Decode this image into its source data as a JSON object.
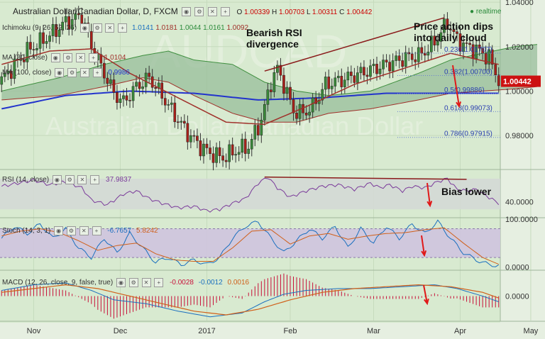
{
  "header": {
    "symbol": "Australian Dollar/Canadian Dollar, D, FXCM",
    "o_label": "O",
    "o_value": "1.00339",
    "h_label": "H",
    "h_value": "1.00703",
    "l_label": "L",
    "l_value": "1.00311",
    "c_label": "C",
    "c_value": "1.00442",
    "realtime": "realtime"
  },
  "indicators": {
    "ichimoku": "Ichimoku (9, 26, 52, 26)",
    "ichimoku_values": [
      "1.0141",
      "1.0181",
      "1.0044",
      "1.0161",
      "1.0092"
    ],
    "ma30": "MA (30, close)",
    "ma30_value": "1.0104",
    "ma100": "MA (100, close)",
    "ma100_value": "0.9986"
  },
  "annotations": {
    "bearish_line1": "Bearish RSI",
    "bearish_line2": "divergence",
    "price_line1": "Price action dips",
    "price_line2": "into daily cloud",
    "bias": "Bias lower"
  },
  "chart_data": [
    {
      "type": "candlestick",
      "title": "Australian Dollar/Canadian Dollar, D, FXCM",
      "x_ticks": [
        "Nov",
        "Dec",
        "2017",
        "Feb",
        "Mar",
        "Apr",
        "May"
      ],
      "y_ticks": [
        "1.04000",
        "1.02000",
        "1.00000",
        "0.98000"
      ],
      "ylim": [
        0.965,
        1.041
      ],
      "last_price": "1.00442",
      "close_path": [
        [
          0,
          1.005
        ],
        [
          8,
          1.018
        ],
        [
          15,
          1.025
        ],
        [
          20,
          1.031
        ],
        [
          25,
          1.034
        ],
        [
          28,
          1.02
        ],
        [
          32,
          1.008
        ],
        [
          35,
          0.999
        ],
        [
          38,
          0.995
        ],
        [
          42,
          1.002
        ],
        [
          46,
          1.006
        ],
        [
          50,
          0.998
        ],
        [
          54,
          0.989
        ],
        [
          58,
          0.981
        ],
        [
          62,
          0.975
        ],
        [
          65,
          0.972
        ],
        [
          69,
          0.97
        ],
        [
          73,
          0.973
        ],
        [
          77,
          0.975
        ],
        [
          81,
          0.987
        ],
        [
          84,
          1.004
        ],
        [
          86,
          1.01
        ],
        [
          88,
          1.003
        ],
        [
          91,
          0.991
        ],
        [
          94,
          0.99
        ],
        [
          97,
          0.993
        ],
        [
          101,
          1.003
        ],
        [
          106,
          1.005
        ],
        [
          110,
          1.007
        ],
        [
          114,
          1.009
        ],
        [
          118,
          1.011
        ],
        [
          122,
          1.013
        ],
        [
          126,
          1.015
        ],
        [
          130,
          1.016
        ],
        [
          133,
          1.019
        ],
        [
          136,
          1.024
        ],
        [
          139,
          1.031
        ],
        [
          142,
          1.023
        ],
        [
          145,
          1.02
        ],
        [
          149,
          1.018
        ],
        [
          152,
          1.015
        ],
        [
          155,
          1.005
        ]
      ],
      "bars_total": 156,
      "ma30": [
        [
          0,
          1.012
        ],
        [
          15,
          1.018
        ],
        [
          28,
          1.019
        ],
        [
          40,
          1.008
        ],
        [
          55,
          0.997
        ],
        [
          70,
          0.986
        ],
        [
          82,
          0.985
        ],
        [
          95,
          0.993
        ],
        [
          110,
          1.003
        ],
        [
          125,
          1.01
        ],
        [
          140,
          1.017
        ],
        [
          155,
          1.012
        ]
      ],
      "ma100": [
        [
          0,
          0.992
        ],
        [
          20,
          0.998
        ],
        [
          40,
          1.0
        ],
        [
          60,
          0.999
        ],
        [
          80,
          0.996
        ],
        [
          100,
          0.997
        ],
        [
          120,
          0.999
        ],
        [
          140,
          0.999
        ],
        [
          155,
          0.999
        ]
      ],
      "cloud_top": [
        [
          0,
          1.0
        ],
        [
          18,
          1.006
        ],
        [
          32,
          1.012
        ],
        [
          44,
          1.016
        ],
        [
          52,
          1.018
        ],
        [
          60,
          1.014
        ],
        [
          72,
          1.012
        ],
        [
          82,
          1.004
        ],
        [
          92,
          1.0
        ],
        [
          102,
          0.998
        ],
        [
          115,
          1.0
        ],
        [
          130,
          1.008
        ],
        [
          140,
          1.014
        ],
        [
          150,
          1.017
        ],
        [
          160,
          1.02
        ],
        [
          167,
          1.021
        ]
      ],
      "cloud_bottom": [
        [
          0,
          0.996
        ],
        [
          18,
          0.998
        ],
        [
          32,
          1.002
        ],
        [
          44,
          1.006
        ],
        [
          52,
          1.004
        ],
        [
          60,
          0.998
        ],
        [
          72,
          0.99
        ],
        [
          82,
          0.986
        ],
        [
          92,
          0.986
        ],
        [
          102,
          0.99
        ],
        [
          115,
          0.992
        ],
        [
          130,
          0.996
        ],
        [
          140,
          0.999
        ],
        [
          150,
          1.0
        ],
        [
          160,
          1.001
        ],
        [
          167,
          1.002
        ]
      ],
      "divergence_price_line": [
        [
          82,
          1.009
        ],
        [
          138,
          1.033
        ]
      ],
      "fibonacci": [
        {
          "label": "0.236(1.01707)",
          "value": 1.01707
        },
        {
          "label": "0.382(1.00700)",
          "value": 1.007
        },
        {
          "label": "0.5(0.99886)",
          "value": 0.99886
        },
        {
          "label": "0.618(0.99073)",
          "value": 0.99073
        },
        {
          "label": "0.786(0.97915)",
          "value": 0.97915
        }
      ]
    },
    {
      "type": "line",
      "title": "RSI (14, close)",
      "value_label": "37.9837",
      "y_ticks": [
        "40.0000"
      ],
      "ylim": [
        20,
        80
      ],
      "series": [
        [
          0,
          60
        ],
        [
          5,
          64
        ],
        [
          10,
          68
        ],
        [
          15,
          62
        ],
        [
          20,
          66
        ],
        [
          25,
          58
        ],
        [
          28,
          42
        ],
        [
          33,
          36
        ],
        [
          38,
          50
        ],
        [
          42,
          54
        ],
        [
          46,
          44
        ],
        [
          50,
          38
        ],
        [
          55,
          32
        ],
        [
          60,
          34
        ],
        [
          64,
          28
        ],
        [
          68,
          30
        ],
        [
          72,
          38
        ],
        [
          76,
          44
        ],
        [
          80,
          64
        ],
        [
          83,
          72
        ],
        [
          86,
          58
        ],
        [
          90,
          46
        ],
        [
          95,
          54
        ],
        [
          100,
          60
        ],
        [
          105,
          62
        ],
        [
          110,
          56
        ],
        [
          115,
          64
        ],
        [
          118,
          58
        ],
        [
          121,
          62
        ],
        [
          125,
          54
        ],
        [
          128,
          60
        ],
        [
          132,
          58
        ],
        [
          136,
          66
        ],
        [
          139,
          70
        ],
        [
          142,
          56
        ],
        [
          145,
          54
        ],
        [
          148,
          56
        ],
        [
          151,
          48
        ],
        [
          155,
          38
        ]
      ],
      "divergence_line": [
        [
          82,
          72
        ],
        [
          145,
          69
        ]
      ]
    },
    {
      "type": "line",
      "title": "Stoch (14, 3, 1)",
      "values": [
        "-6.7657",
        "5.8242"
      ],
      "y_ticks": [
        "100.0000",
        "0.0000"
      ],
      "ylim": [
        -5,
        100
      ],
      "band": [
        20,
        80
      ],
      "series": [
        {
          "name": "-6.7657",
          "points": [
            [
              0,
              60
            ],
            [
              4,
              85
            ],
            [
              8,
              70
            ],
            [
              12,
              90
            ],
            [
              16,
              60
            ],
            [
              20,
              80
            ],
            [
              24,
              40
            ],
            [
              28,
              20
            ],
            [
              32,
              60
            ],
            [
              36,
              30
            ],
            [
              40,
              70
            ],
            [
              44,
              40
            ],
            [
              48,
              10
            ],
            [
              52,
              20
            ],
            [
              56,
              5
            ],
            [
              60,
              15
            ],
            [
              64,
              5
            ],
            [
              68,
              20
            ],
            [
              72,
              60
            ],
            [
              76,
              85
            ],
            [
              80,
              95
            ],
            [
              84,
              60
            ],
            [
              88,
              30
            ],
            [
              92,
              55
            ],
            [
              96,
              80
            ],
            [
              100,
              60
            ],
            [
              104,
              85
            ],
            [
              108,
              40
            ],
            [
              112,
              80
            ],
            [
              116,
              50
            ],
            [
              120,
              85
            ],
            [
              124,
              60
            ],
            [
              128,
              90
            ],
            [
              132,
              70
            ],
            [
              136,
              95
            ],
            [
              140,
              60
            ],
            [
              144,
              30
            ],
            [
              148,
              15
            ],
            [
              152,
              5
            ],
            [
              155,
              3
            ]
          ]
        },
        {
          "name": "5.8242",
          "points": [
            [
              0,
              65
            ],
            [
              6,
              75
            ],
            [
              12,
              80
            ],
            [
              18,
              72
            ],
            [
              24,
              55
            ],
            [
              30,
              35
            ],
            [
              36,
              45
            ],
            [
              42,
              50
            ],
            [
              48,
              28
            ],
            [
              54,
              15
            ],
            [
              60,
              12
            ],
            [
              66,
              12
            ],
            [
              72,
              40
            ],
            [
              78,
              75
            ],
            [
              84,
              78
            ],
            [
              90,
              48
            ],
            [
              96,
              65
            ],
            [
              102,
              70
            ],
            [
              108,
              58
            ],
            [
              114,
              65
            ],
            [
              120,
              70
            ],
            [
              126,
              72
            ],
            [
              132,
              78
            ],
            [
              138,
              82
            ],
            [
              144,
              50
            ],
            [
              150,
              20
            ],
            [
              155,
              6
            ]
          ]
        }
      ]
    },
    {
      "type": "line",
      "title": "MACD (12, 26, close, 9, false, true)",
      "values": [
        "-0.0028",
        "-0.0012",
        "0.0016"
      ],
      "y_ticks": [
        "0.0000"
      ],
      "ylim": [
        -0.013,
        0.013
      ],
      "macd": [
        [
          0,
          0.003
        ],
        [
          10,
          0.006
        ],
        [
          20,
          0.007
        ],
        [
          28,
          0.003
        ],
        [
          35,
          -0.002
        ],
        [
          45,
          -0.004
        ],
        [
          55,
          -0.008
        ],
        [
          65,
          -0.011
        ],
        [
          75,
          -0.009
        ],
        [
          82,
          -0.003
        ],
        [
          88,
          0.001
        ],
        [
          95,
          0.003
        ],
        [
          105,
          0.004
        ],
        [
          115,
          0.004
        ],
        [
          125,
          0.005
        ],
        [
          135,
          0.006
        ],
        [
          142,
          0.004
        ],
        [
          150,
          0.0
        ],
        [
          155,
          -0.003
        ]
      ],
      "signal": [
        [
          0,
          0.002
        ],
        [
          10,
          0.004
        ],
        [
          20,
          0.006
        ],
        [
          30,
          0.004
        ],
        [
          40,
          0.0
        ],
        [
          50,
          -0.004
        ],
        [
          60,
          -0.008
        ],
        [
          70,
          -0.01
        ],
        [
          80,
          -0.007
        ],
        [
          90,
          -0.002
        ],
        [
          100,
          0.002
        ],
        [
          110,
          0.004
        ],
        [
          120,
          0.005
        ],
        [
          130,
          0.006
        ],
        [
          140,
          0.005
        ],
        [
          150,
          0.002
        ],
        [
          155,
          -0.001
        ]
      ]
    }
  ]
}
